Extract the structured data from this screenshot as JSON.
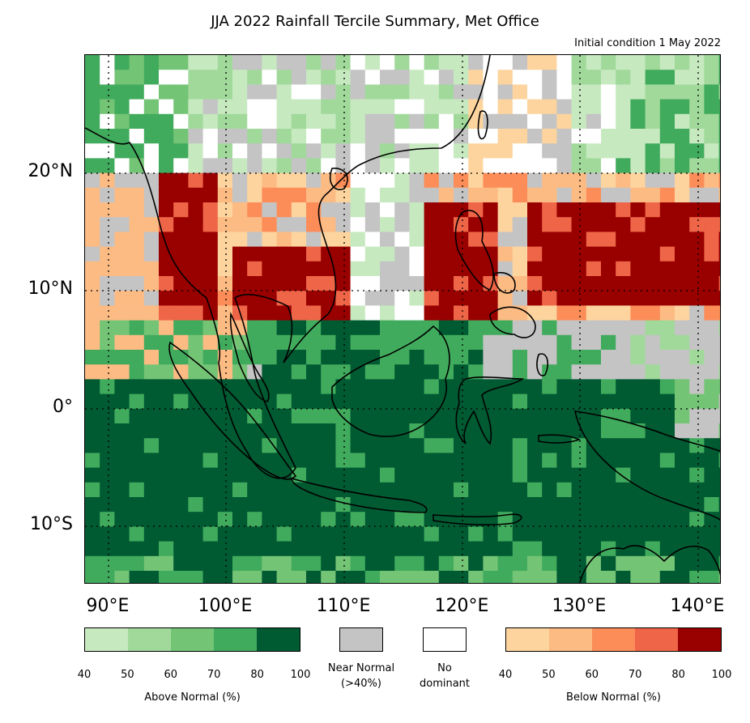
{
  "header": {
    "title": "JJA 2022 Rainfall Tercile Summary, Met Office",
    "subtitle": "Initial condition 1 May 2022"
  },
  "map": {
    "lat_labels": [
      "20°N",
      "10°N",
      "0°",
      "10°S"
    ],
    "lon_labels": [
      "90°E",
      "100°E",
      "110°E",
      "120°E",
      "130°E",
      "140°E"
    ],
    "lon_range": [
      88,
      142
    ],
    "lat_range": [
      -15,
      30
    ],
    "gridlines": "dotted"
  },
  "legend": {
    "above": {
      "caption": "Above Normal (%)",
      "ticks": [
        "40",
        "50",
        "60",
        "70",
        "80",
        "100"
      ],
      "colors": [
        "#c7e9c0",
        "#a1d99b",
        "#74c476",
        "#41ab5d",
        "#005a32"
      ]
    },
    "near_normal": {
      "caption": "Near Normal (>40%)",
      "line1": "Near Normal",
      "line2": "(>40%)",
      "color": "#c4c4c4"
    },
    "no_dominant": {
      "line1": "No",
      "line2": "dominant",
      "color": "#ffffff"
    },
    "below": {
      "caption": "Below Normal (%)",
      "ticks": [
        "40",
        "50",
        "60",
        "70",
        "80",
        "100"
      ],
      "colors": [
        "#fdd49e",
        "#fdbb84",
        "#fc8d59",
        "#ef6548",
        "#990000"
      ]
    }
  }
}
